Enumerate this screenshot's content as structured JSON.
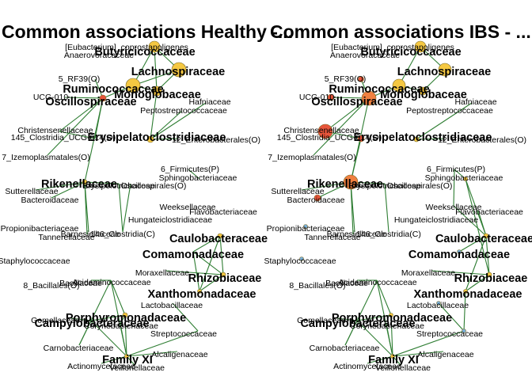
{
  "titles": {
    "left": "Common associations Healthy -...",
    "right": "Common associations IBS - ..."
  },
  "colors": {
    "edge": "#2e7d32",
    "node_yellow": "#f5c842",
    "node_red": "#e8553b",
    "node_orange": "#f08040",
    "node_blue": "#7ab0d8",
    "node_label": "#000000"
  },
  "networks": [
    {
      "name": "healthy",
      "labels": {
        "butyricicoccaceae": "Butyricicoccaceae",
        "eubacterium": "[Eubacterium]_coprostanoligenes",
        "anaerovoracaceae": "Anaerovoracaceae",
        "lachnospiraceae": "Lachnospiraceae",
        "rf39": "5_RF39(O)",
        "ruminococcaceae": "Ruminococcaceae",
        "monoglobaceae": "Monoglobaceae",
        "ucg010": "UCG-010",
        "oscillospiraceae": "Oscillospiraceae",
        "hafniaceae": "Hafniaceae",
        "peptostreptococcaceae": "Peptostreptococcaceae",
        "christensenellaceae": "Christensenellaceae",
        "clostridia_ucg014": "145_Clostridia_UCG-014(O)",
        "erysipelatoclostridiaceae": "Erysipelatoclostridiaceae",
        "enterobacterales": "12_Enterobacterales(O)",
        "izemoplasmatales": "7_Izemoplasmatales(O)",
        "firmicutes": "6_Firmicutes(P)",
        "sphingobacteriaceae": "Sphingobacteriaceae",
        "rikenellaceae": "Rikenellaceae",
        "erysipelotrichaceae": "Erysipelotrichaceae",
        "oscillospirales": "Oscillospirales(O)",
        "sutterellaceae": "Sutterellaceae",
        "bacteroidaceae": "Bacteroidaceae",
        "weeksellaceae": "Weeksellaceae",
        "flavobacteriaceae": "Flavobacteriaceae",
        "hungateiclostridiaceae": "Hungateiclostridiaceae",
        "propionibacteriaceae": "Propionibacteriaceae",
        "tannerellaceae": "Tannerellaceae",
        "barnesiellaceae": "Barnesiellaceae",
        "clostridia_c": "146_Clostridia(C)",
        "caulobacteraceae": "Caulobacteraceae",
        "staphylococcaceae": "Staphylococcaceae",
        "comamonadaceae": "Comamonadaceae",
        "moraxellaceae": "Moraxellaceae",
        "rhizobiaceae": "Rhizobiaceae",
        "bacillales": "8_Bacillales(O)",
        "bacillaceae": "Bacillaceae",
        "acidaminococcaceae": "Acidaminococcaceae",
        "xanthomonadaceae": "Xanthomonadaceae",
        "lactobacillaceae": "Lactobacillaceae",
        "porphyromonadaceae": "Porphyromonadaceae",
        "gemellaceae": "Gemellaceae",
        "campylobacteraceae": "Campylobacteraceae",
        "corynebacteriaceae": "Corynebacteriaceae",
        "streptococcaceae": "Streptococcaceae",
        "carnobacteriaceae": "Carnobacteriaceae",
        "alcaligenaceae": "Alcaligenaceae",
        "family_xi": "Family XI",
        "actinomycetaceae": "Actinomycetaceae",
        "veillonellaceae": "Veillonellaceae"
      }
    },
    {
      "name": "ibs",
      "labels": {
        "butyricicoccaceae": "Butyricicoccaceae",
        "eubacterium": "[Eubacterium]_coprostanoligenes",
        "anaerovoracaceae": "Anaerovoracaceae",
        "lachnospiraceae": "Lachnospiraceae",
        "rf39": "5_RF39(O)",
        "ruminococcaceae": "Ruminococcaceae",
        "monoglobaceae": "Monoglobaceae",
        "ucg010": "UCG-010",
        "oscillospiraceae": "Oscillospiraceae",
        "hafniaceae": "Hafniaceae",
        "peptostreptococcaceae": "Peptostreptococcaceae",
        "christensenellaceae": "Christensenellaceae",
        "clostridia_ucg014": "145_Clostridia_UCG-014(O)",
        "erysipelatoclostridiaceae": "Erysipelatoclostridiaceae",
        "enterobacterales": "12_Enterobacterales(O)",
        "izemoplasmatales": "7_Izemoplasmatales(O)",
        "firmicutes": "6_Firmicutes(P)",
        "sphingobacteriaceae": "Sphingobacteriaceae",
        "rikenellaceae": "Rikenellaceae",
        "erysipelotrichaceae": "Erysipelotrichaceae",
        "oscillospirales": "Oscillospirales(O)",
        "sutterellaceae": "Sutterellaceae",
        "bacteroidaceae": "Bacteroidaceae",
        "weeksellaceae": "Weeksellaceae",
        "flavobacteriaceae": "Flavobacteriaceae",
        "hungateiclostridiaceae": "Hungateiclostridiaceae",
        "propionibacteriaceae": "Propionibacteriaceae",
        "tannerellaceae": "Tannerellaceae",
        "barnesiellaceae": "Barnesiellaceae",
        "clostridia_c": "146_Clostridia(C)",
        "caulobacteraceae": "Caulobacteraceae",
        "staphylococcaceae": "Staphylococcaceae",
        "comamonadaceae": "Comamonadaceae",
        "moraxellaceae": "Moraxellaceae",
        "rhizobiaceae": "Rhizobiaceae",
        "bacillales": "8_Bacillales(O)",
        "bacillaceae": "Bacillaceae",
        "acidaminococcaceae": "Acidaminococcaceae",
        "xanthomonadaceae": "Xanthomonadaceae",
        "lactobacillaceae": "Lactobacillaceae",
        "porphyromonadaceae": "Porphyromonadaceae",
        "gemellaceae": "Gemellaceae",
        "campylobacteraceae": "Campylobacteraceae",
        "corynebacteriaceae": "Corynebacteriaceae",
        "streptococcaceae": "Streptococcaceae",
        "carnobacteriaceae": "Carnobacteriaceae",
        "alcaligenaceae": "Alcaligenaceae",
        "family_xi": "Family XI",
        "actinomycetaceae": "Actinomycetaceae",
        "veillonellaceae": "Veillonellaceae"
      }
    }
  ]
}
